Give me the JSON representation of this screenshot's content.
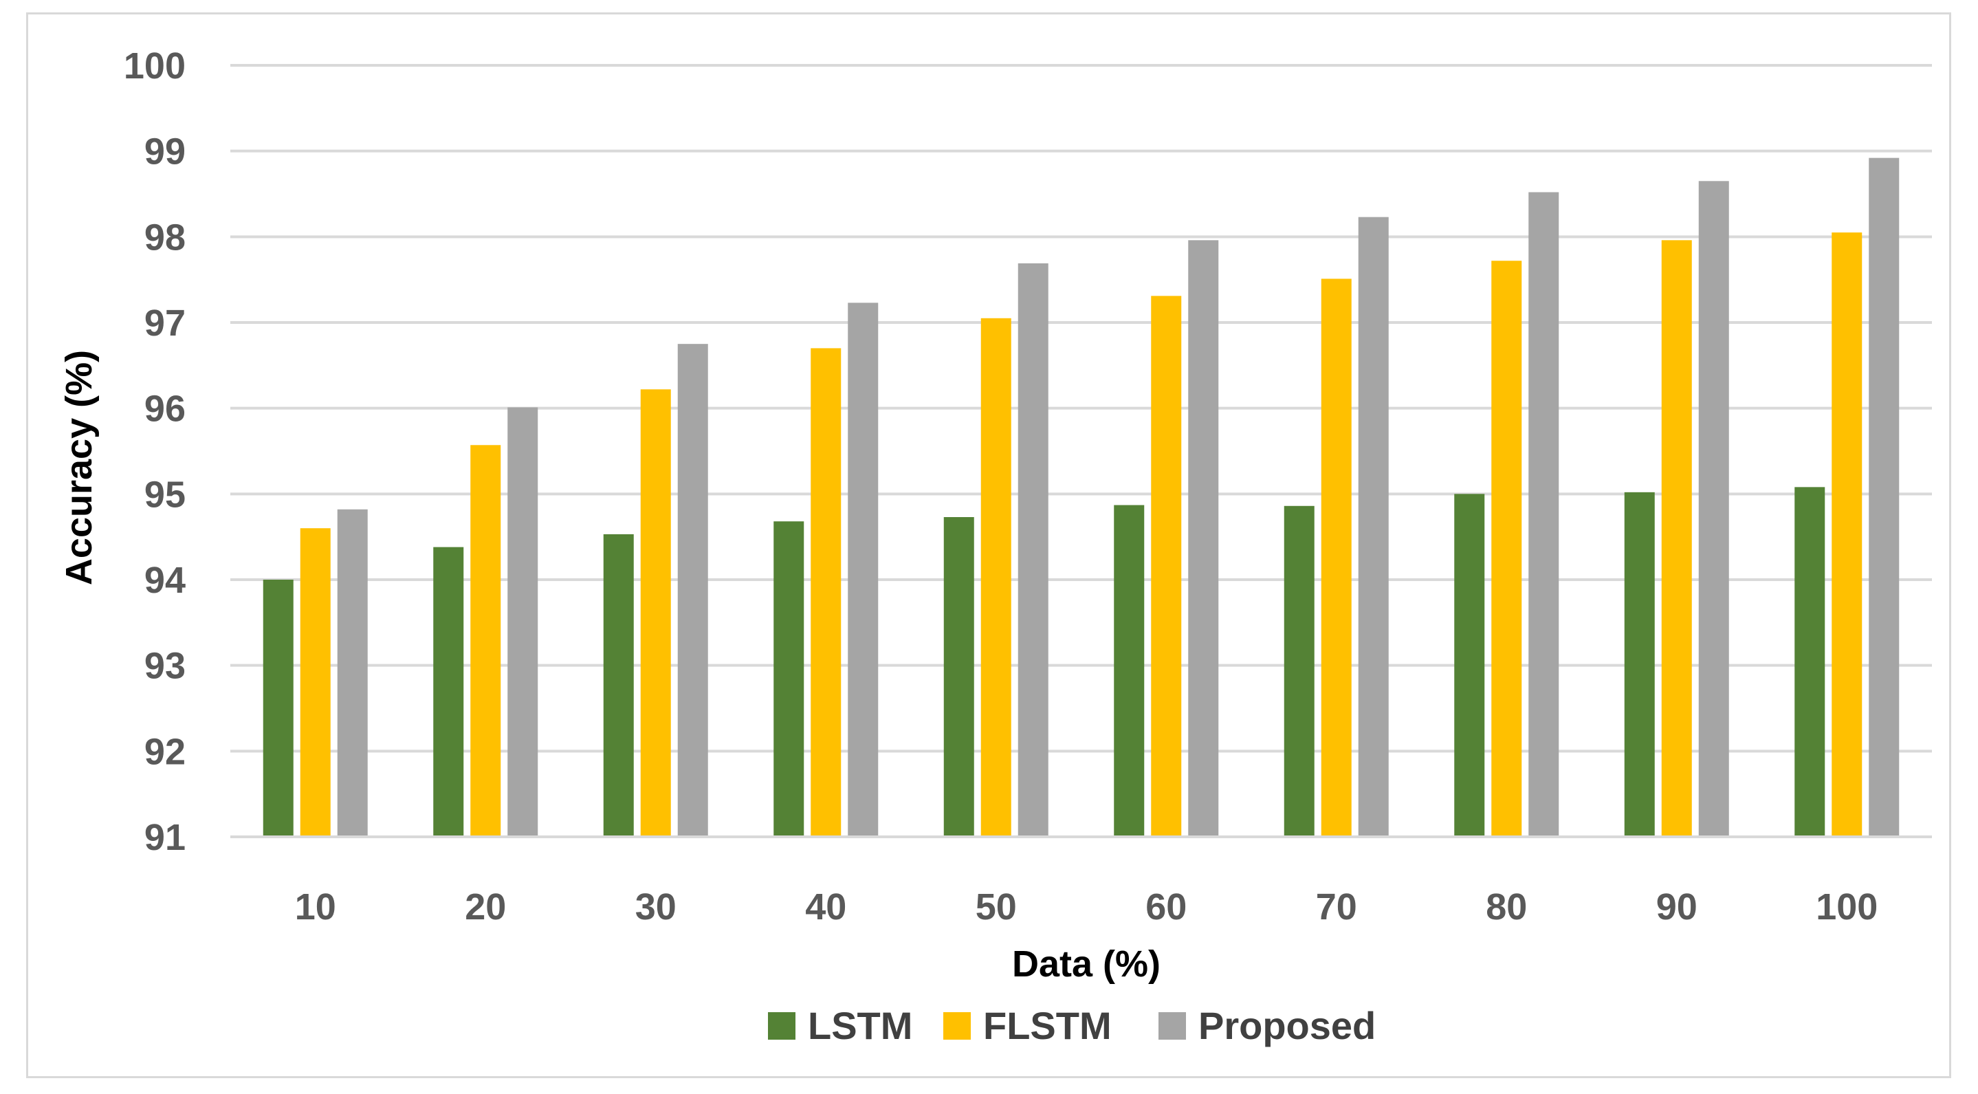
{
  "chart_data": {
    "type": "bar",
    "title": "",
    "xlabel": "Data (%)",
    "ylabel": "Accuracy (%)",
    "ylim": [
      91,
      100
    ],
    "yticks": [
      "100",
      "99",
      "98",
      "97",
      "96",
      "95",
      "94",
      "93",
      "92",
      "91"
    ],
    "categories": [
      "10",
      "20",
      "30",
      "40",
      "50",
      "60",
      "70",
      "80",
      "90",
      "100"
    ],
    "grid": true,
    "legend_position": "bottom",
    "series": [
      {
        "name": "LSTM",
        "color": "#548235",
        "values": [
          94.0,
          94.38,
          94.53,
          94.68,
          94.73,
          94.87,
          94.86,
          95.0,
          95.02,
          95.08
        ]
      },
      {
        "name": "FLSTM",
        "color": "#ffc000",
        "values": [
          94.6,
          95.57,
          96.22,
          96.7,
          97.05,
          97.31,
          97.51,
          97.72,
          97.96,
          98.05
        ]
      },
      {
        "name": "Proposed",
        "color": "#a5a5a5",
        "values": [
          94.82,
          96.01,
          96.75,
          97.23,
          97.69,
          97.96,
          98.23,
          98.52,
          98.65,
          98.92
        ]
      }
    ]
  }
}
